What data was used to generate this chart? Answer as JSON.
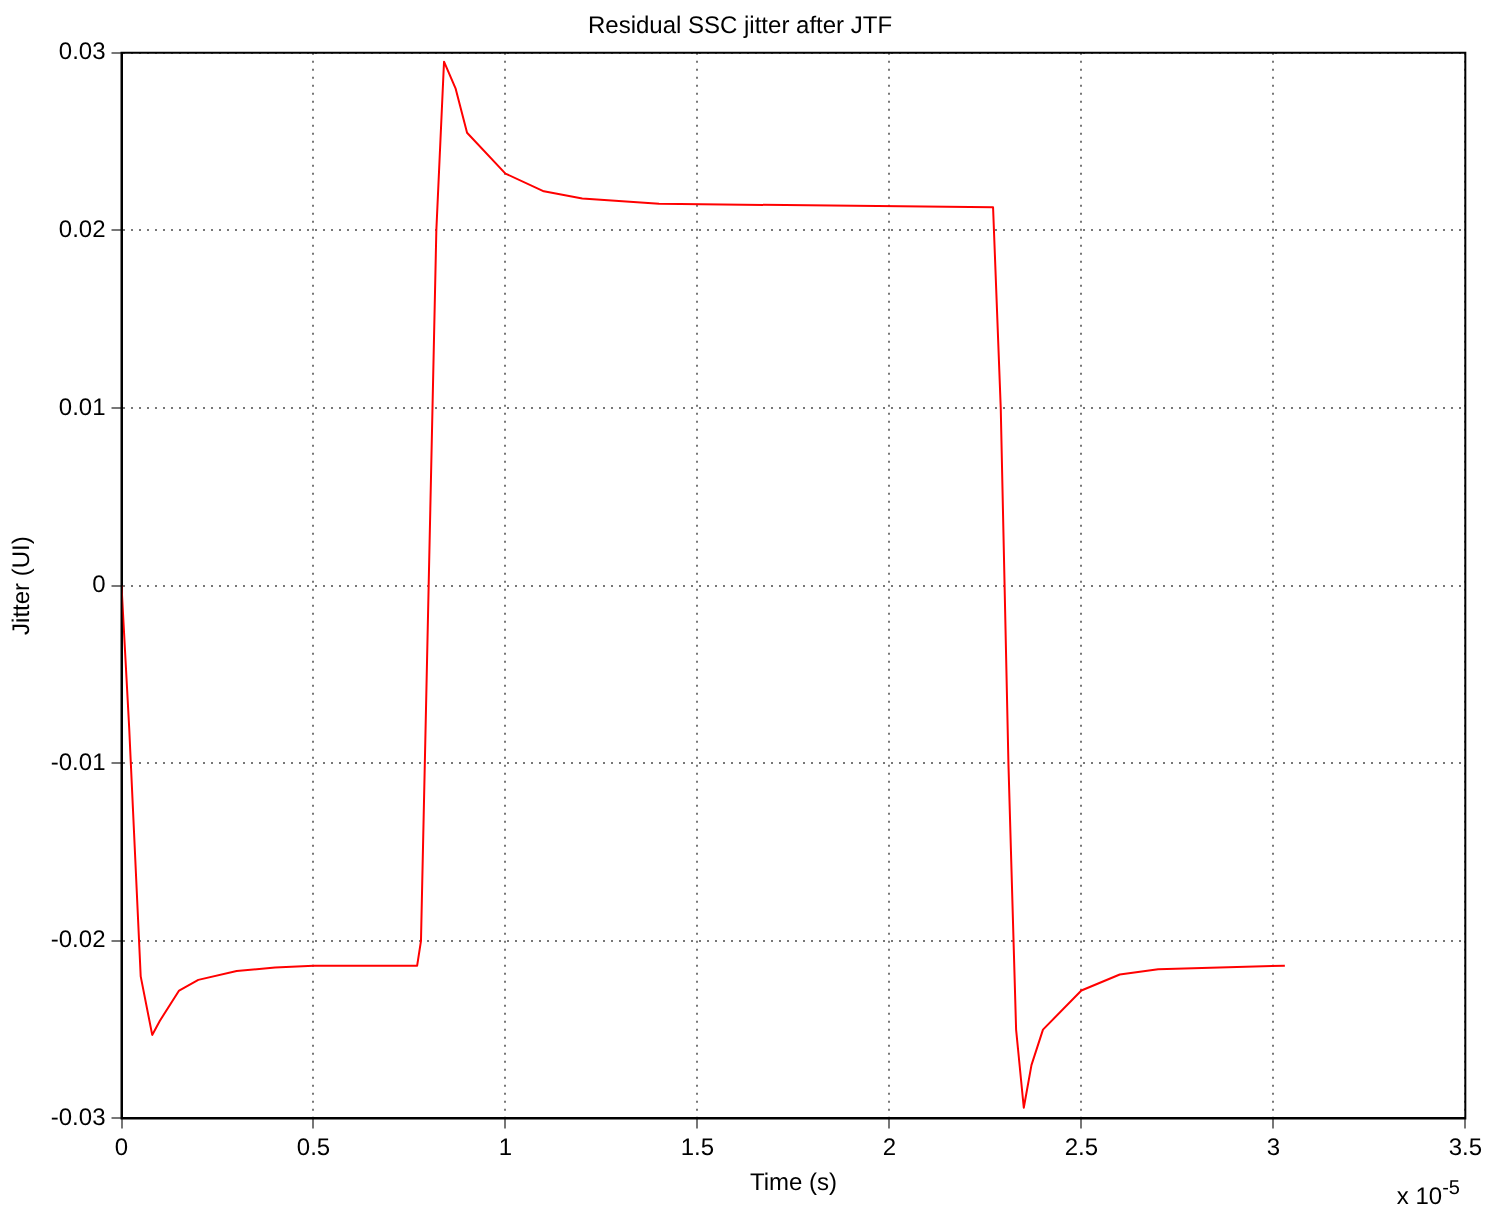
{
  "chart_data": {
    "type": "line",
    "title": "Residual SSC jitter after JTF",
    "xlabel": "Time (s)",
    "ylabel": "Jitter (UI)",
    "annotations": [
      "x 10$^{-5}$"
    ],
    "xlim": [
      0,
      3.5
    ],
    "xticks": [
      0,
      0.5,
      1,
      1.5,
      2,
      2.5,
      3,
      3.5
    ],
    "ylim": [
      -0.03,
      0.03
    ],
    "yticks": [
      -0.03,
      -0.02,
      -0.01,
      0,
      0.01,
      0.02,
      0.03
    ],
    "grid": true,
    "legend": false,
    "marker": "none",
    "line_style": "solid",
    "series": [
      {
        "color": "#ff0000",
        "x": [
          0,
          0.02,
          0.05,
          0.08,
          0.1,
          0.15,
          0.2,
          0.3,
          0.4,
          0.5,
          0.77,
          0.78,
          0.8,
          0.82,
          0.84,
          0.87,
          0.9,
          1.0,
          1.1,
          1.2,
          1.4,
          2.27,
          2.29,
          2.31,
          2.33,
          2.35,
          2.37,
          2.4,
          2.5,
          2.6,
          2.7,
          3.03
        ],
        "values": [
          0,
          -0.008,
          -0.022,
          -0.0253,
          -0.0245,
          -0.0228,
          -0.0222,
          -0.0217,
          -0.0215,
          -0.0214,
          -0.0214,
          -0.02,
          0,
          0.02,
          0.0295,
          0.028,
          0.0255,
          0.0232,
          0.0222,
          0.0218,
          0.0215,
          0.0213,
          0.01,
          -0.01,
          -0.025,
          -0.0294,
          -0.027,
          -0.025,
          -0.0228,
          -0.0219,
          -0.0216,
          -0.0214
        ]
      }
    ]
  }
}
